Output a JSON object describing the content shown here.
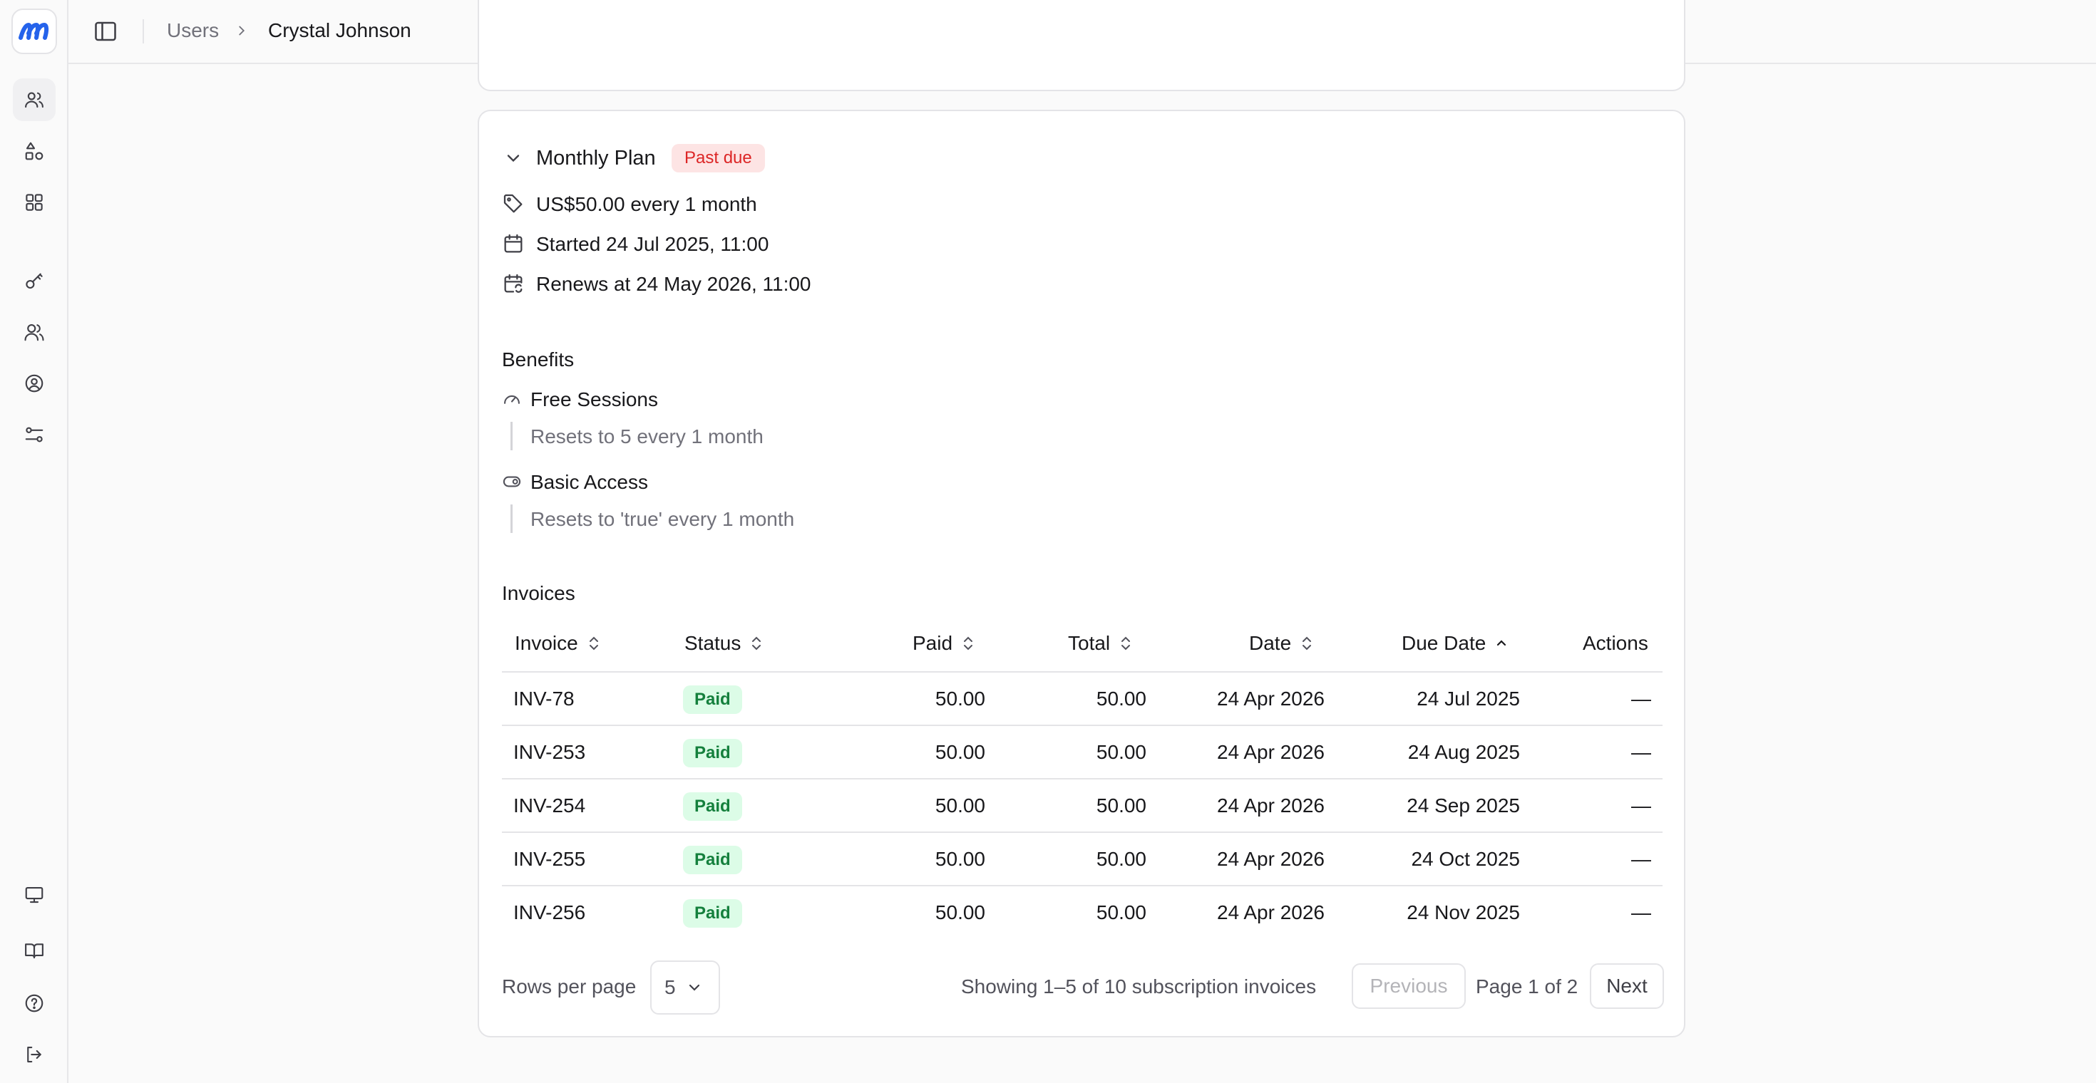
{
  "breadcrumb": {
    "parent": "Users",
    "current": "Crystal Johnson"
  },
  "sidebar": {
    "items": [
      {
        "icon": "users-icon",
        "active": true
      },
      {
        "icon": "shapes-icon"
      },
      {
        "icon": "grid-icon"
      },
      {
        "icon": "key-icon"
      },
      {
        "icon": "user-group-icon"
      },
      {
        "icon": "user-circle-icon"
      },
      {
        "icon": "sliders-icon"
      }
    ],
    "bottom": [
      {
        "icon": "monitor-icon"
      },
      {
        "icon": "book-icon"
      },
      {
        "icon": "help-icon"
      },
      {
        "icon": "logout-icon"
      }
    ]
  },
  "plan": {
    "name": "Monthly Plan",
    "status": "Past due",
    "price": "US$50.00 every 1 month",
    "started": "Started 24 Jul 2025, 11:00",
    "renews": "Renews at 24 May 2026, 11:00"
  },
  "benefits": {
    "title": "Benefits",
    "items": [
      {
        "name": "Free Sessions",
        "desc": "Resets to 5 every 1 month"
      },
      {
        "name": "Basic Access",
        "desc": "Resets to 'true' every 1 month"
      }
    ]
  },
  "invoices": {
    "title": "Invoices",
    "columns": {
      "invoice": "Invoice",
      "status": "Status",
      "paid": "Paid",
      "total": "Total",
      "date": "Date",
      "due_date": "Due Date",
      "actions": "Actions"
    },
    "rows": [
      {
        "invoice": "INV-78",
        "status": "Paid",
        "paid": "50.00",
        "total": "50.00",
        "date": "24 Apr 2026",
        "due_date": "24 Jul 2025",
        "actions": "—"
      },
      {
        "invoice": "INV-253",
        "status": "Paid",
        "paid": "50.00",
        "total": "50.00",
        "date": "24 Apr 2026",
        "due_date": "24 Aug 2025",
        "actions": "—"
      },
      {
        "invoice": "INV-254",
        "status": "Paid",
        "paid": "50.00",
        "total": "50.00",
        "date": "24 Apr 2026",
        "due_date": "24 Sep 2025",
        "actions": "—"
      },
      {
        "invoice": "INV-255",
        "status": "Paid",
        "paid": "50.00",
        "total": "50.00",
        "date": "24 Apr 2026",
        "due_date": "24 Oct 2025",
        "actions": "—"
      },
      {
        "invoice": "INV-256",
        "status": "Paid",
        "paid": "50.00",
        "total": "50.00",
        "date": "24 Apr 2026",
        "due_date": "24 Nov 2025",
        "actions": "—"
      }
    ]
  },
  "pagination": {
    "rows_label": "Rows per page",
    "rows_value": "5",
    "showing": "Showing 1–5 of 10 subscription invoices",
    "previous": "Previous",
    "page_info": "Page 1 of 2",
    "next": "Next"
  },
  "colors": {
    "past_due_bg": "#fde4e4",
    "past_due_text": "#dc2626",
    "paid_bg": "#dcfce7",
    "paid_text": "#15803d",
    "brand": "#2563eb"
  }
}
